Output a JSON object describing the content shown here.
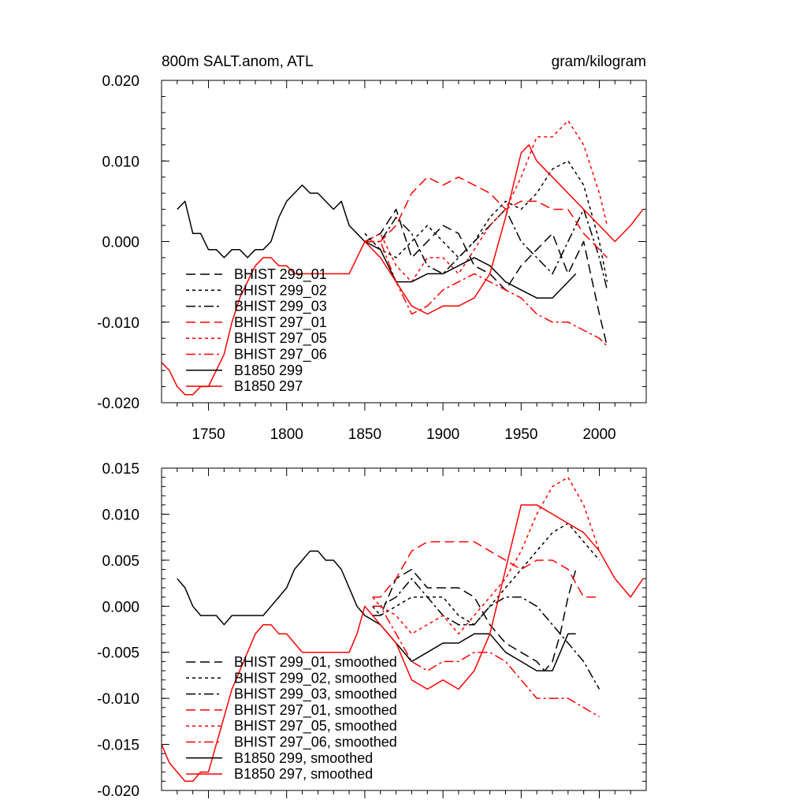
{
  "chart_data": [
    {
      "type": "line",
      "title": "800m SALT.anom, ATL",
      "units": "gram/kilogram",
      "xlim": [
        1720,
        2030
      ],
      "ylim": [
        -0.02,
        0.02
      ],
      "xticks": [
        1750,
        1800,
        1850,
        1900,
        1950,
        2000
      ],
      "xtick_labels": [
        "1750",
        "1800",
        "1850",
        "1900",
        "1950",
        "2000"
      ],
      "yticks": [
        -0.02,
        -0.01,
        0.0,
        0.01,
        0.02
      ],
      "ytick_labels": [
        "-0.020",
        "-0.010",
        "0.000",
        "0.010",
        "0.020"
      ],
      "legend_position": "bottom-left",
      "series": [
        {
          "name": "BHIST 299_01",
          "color": "#000000",
          "dash": "dash",
          "x": [
            1850,
            1860,
            1870,
            1880,
            1890,
            1900,
            1910,
            1920,
            1930,
            1940,
            1950,
            1960,
            1970,
            1980,
            1990,
            2000,
            2005
          ],
          "y": [
            0.0,
            0.001,
            0.004,
            -0.002,
            0.0,
            0.002,
            0.001,
            -0.003,
            -0.004,
            -0.006,
            -0.003,
            -0.001,
            0.001,
            -0.004,
            0.0,
            -0.009,
            -0.013
          ]
        },
        {
          "name": "BHIST 299_02",
          "color": "#000000",
          "dash": "dot",
          "x": [
            1850,
            1860,
            1870,
            1880,
            1890,
            1900,
            1910,
            1920,
            1930,
            1940,
            1950,
            1960,
            1970,
            1980,
            1990,
            2000,
            2005
          ],
          "y": [
            0.001,
            -0.001,
            -0.002,
            0.0,
            0.002,
            0.0,
            -0.002,
            0.0,
            0.003,
            0.005,
            0.004,
            0.006,
            0.009,
            0.01,
            0.007,
            0.0,
            -0.005
          ]
        },
        {
          "name": "BHIST 299_03",
          "color": "#000000",
          "dash": "dashdot",
          "x": [
            1850,
            1860,
            1870,
            1880,
            1890,
            1900,
            1910,
            1920,
            1930,
            1940,
            1950,
            1960,
            1970,
            1980,
            1990,
            2000,
            2005
          ],
          "y": [
            0.0,
            0.0,
            0.003,
            0.001,
            -0.003,
            -0.004,
            -0.002,
            0.0,
            0.002,
            0.004,
            0.0,
            -0.002,
            -0.004,
            0.0,
            0.004,
            -0.002,
            -0.006
          ]
        },
        {
          "name": "BHIST 297_01",
          "color": "#ff0000",
          "dash": "dash",
          "x": [
            1850,
            1860,
            1870,
            1880,
            1890,
            1900,
            1910,
            1920,
            1930,
            1940,
            1950,
            1960,
            1970,
            1980,
            1990,
            2000,
            2005
          ],
          "y": [
            0.0,
            0.0,
            0.002,
            0.006,
            0.008,
            0.007,
            0.008,
            0.007,
            0.006,
            0.004,
            0.005,
            0.005,
            0.004,
            0.004,
            0.001,
            -0.001,
            -0.002
          ]
        },
        {
          "name": "BHIST 297_05",
          "color": "#ff0000",
          "dash": "dot",
          "x": [
            1850,
            1860,
            1870,
            1880,
            1890,
            1900,
            1910,
            1920,
            1930,
            1940,
            1950,
            1960,
            1970,
            1980,
            1990,
            2000,
            2005
          ],
          "y": [
            0.0,
            0.001,
            -0.003,
            -0.005,
            -0.002,
            -0.002,
            -0.004,
            -0.001,
            0.002,
            0.004,
            0.008,
            0.013,
            0.013,
            0.015,
            0.012,
            0.006,
            0.002
          ]
        },
        {
          "name": "BHIST 297_06",
          "color": "#ff0000",
          "dash": "dashdot",
          "x": [
            1850,
            1860,
            1870,
            1880,
            1890,
            1900,
            1910,
            1920,
            1930,
            1940,
            1950,
            1960,
            1970,
            1980,
            1990,
            2000,
            2005
          ],
          "y": [
            0.0,
            0.0,
            -0.005,
            -0.009,
            -0.008,
            -0.006,
            -0.005,
            -0.004,
            -0.005,
            -0.006,
            -0.007,
            -0.009,
            -0.01,
            -0.01,
            -0.011,
            -0.012,
            -0.013
          ]
        },
        {
          "name": "B1850 299",
          "color": "#000000",
          "dash": "solid",
          "x": [
            1730,
            1735,
            1740,
            1745,
            1750,
            1755,
            1760,
            1765,
            1770,
            1775,
            1780,
            1785,
            1790,
            1795,
            1800,
            1805,
            1810,
            1815,
            1820,
            1825,
            1830,
            1835,
            1840,
            1845,
            1850,
            1860,
            1870,
            1880,
            1890,
            1900,
            1910,
            1920,
            1930,
            1940,
            1950,
            1960,
            1970,
            1980,
            1985
          ],
          "y": [
            0.004,
            0.005,
            0.001,
            0.001,
            -0.001,
            -0.001,
            -0.002,
            -0.001,
            -0.001,
            -0.002,
            -0.001,
            -0.001,
            0.0,
            0.003,
            0.005,
            0.006,
            0.007,
            0.006,
            0.006,
            0.005,
            0.004,
            0.005,
            0.002,
            0.001,
            0.0,
            -0.001,
            -0.005,
            -0.005,
            -0.004,
            -0.004,
            -0.003,
            -0.002,
            -0.003,
            -0.005,
            -0.006,
            -0.007,
            -0.007,
            -0.005,
            -0.004
          ]
        },
        {
          "name": "B1850 297",
          "color": "#ff0000",
          "dash": "solid",
          "x": [
            1720,
            1725,
            1730,
            1735,
            1740,
            1745,
            1750,
            1755,
            1760,
            1765,
            1770,
            1775,
            1780,
            1785,
            1790,
            1795,
            1800,
            1805,
            1810,
            1815,
            1820,
            1825,
            1830,
            1835,
            1840,
            1845,
            1850,
            1860,
            1870,
            1880,
            1890,
            1900,
            1910,
            1920,
            1930,
            1940,
            1950,
            1955,
            1960,
            1970,
            1980,
            1990,
            2000,
            2010,
            2020,
            2028
          ],
          "y": [
            -0.015,
            -0.016,
            -0.018,
            -0.019,
            -0.019,
            -0.018,
            -0.018,
            -0.016,
            -0.014,
            -0.01,
            -0.007,
            -0.005,
            -0.003,
            -0.002,
            -0.002,
            -0.003,
            -0.003,
            -0.004,
            -0.004,
            -0.004,
            -0.004,
            -0.004,
            -0.004,
            -0.004,
            -0.004,
            -0.002,
            0.0,
            -0.002,
            -0.005,
            -0.008,
            -0.009,
            -0.008,
            -0.008,
            -0.007,
            -0.004,
            0.003,
            0.011,
            0.012,
            0.01,
            0.008,
            0.006,
            0.004,
            0.002,
            0.0,
            0.002,
            0.004
          ]
        }
      ]
    },
    {
      "type": "line",
      "xlim": [
        1720,
        2030
      ],
      "ylim": [
        -0.02,
        0.015
      ],
      "xticks": [
        1750,
        1800,
        1850,
        1900,
        1950,
        2000
      ],
      "yticks": [
        -0.02,
        -0.015,
        -0.01,
        -0.005,
        0.0,
        0.005,
        0.01,
        0.015
      ],
      "ytick_labels": [
        "-0.020",
        "-0.015",
        "-0.010",
        "-0.005",
        "0.000",
        "0.005",
        "0.010",
        "0.015"
      ],
      "legend_position": "bottom-left",
      "series": [
        {
          "name": "BHIST 299_01, smoothed",
          "color": "#000000",
          "dash": "dash",
          "x": [
            1855,
            1860,
            1870,
            1880,
            1890,
            1900,
            1910,
            1920,
            1930,
            1940,
            1950,
            1960,
            1965,
            1970,
            1975,
            1980,
            1985
          ],
          "y": [
            -0.001,
            -0.001,
            0.003,
            0.004,
            0.002,
            0.002,
            0.002,
            0.001,
            -0.002,
            -0.004,
            -0.005,
            -0.006,
            -0.007,
            -0.006,
            -0.003,
            0.001,
            0.004
          ]
        },
        {
          "name": "BHIST 299_02, smoothed",
          "color": "#000000",
          "dash": "dot",
          "x": [
            1855,
            1860,
            1870,
            1880,
            1890,
            1900,
            1910,
            1920,
            1930,
            1940,
            1950,
            1960,
            1970,
            1980,
            1990,
            2000
          ],
          "y": [
            0.0,
            -0.001,
            0.0,
            0.001,
            0.001,
            0.001,
            -0.001,
            -0.002,
            0.0,
            0.002,
            0.004,
            0.006,
            0.008,
            0.009,
            0.007,
            0.005
          ]
        },
        {
          "name": "BHIST 299_03, smoothed",
          "color": "#000000",
          "dash": "dashdot",
          "x": [
            1855,
            1860,
            1870,
            1880,
            1890,
            1900,
            1910,
            1920,
            1930,
            1940,
            1950,
            1960,
            1970,
            1980,
            1990,
            2000
          ],
          "y": [
            0.0,
            0.0,
            0.001,
            0.003,
            0.001,
            -0.001,
            -0.002,
            -0.002,
            0.0,
            0.001,
            0.001,
            0.0,
            -0.002,
            -0.004,
            -0.006,
            -0.009
          ]
        },
        {
          "name": "BHIST 297_01, smoothed",
          "color": "#ff0000",
          "dash": "dash",
          "x": [
            1855,
            1860,
            1870,
            1880,
            1890,
            1900,
            1910,
            1920,
            1930,
            1940,
            1950,
            1960,
            1970,
            1980,
            1990,
            2000
          ],
          "y": [
            0.001,
            0.001,
            0.003,
            0.006,
            0.007,
            0.007,
            0.007,
            0.007,
            0.006,
            0.005,
            0.004,
            0.005,
            0.005,
            0.004,
            0.001,
            0.001
          ]
        },
        {
          "name": "BHIST 297_05, smoothed",
          "color": "#ff0000",
          "dash": "dot",
          "x": [
            1855,
            1860,
            1870,
            1880,
            1890,
            1900,
            1910,
            1920,
            1930,
            1940,
            1950,
            1960,
            1970,
            1980,
            1990,
            2000
          ],
          "y": [
            0.001,
            0.0,
            -0.001,
            -0.003,
            -0.002,
            -0.001,
            -0.003,
            -0.001,
            0.001,
            0.003,
            0.006,
            0.01,
            0.013,
            0.014,
            0.011,
            0.006
          ]
        },
        {
          "name": "BHIST 297_06, smoothed",
          "color": "#ff0000",
          "dash": "dashdot",
          "x": [
            1855,
            1860,
            1870,
            1880,
            1890,
            1900,
            1910,
            1920,
            1930,
            1940,
            1950,
            1960,
            1970,
            1980,
            1990,
            2000
          ],
          "y": [
            0.0,
            0.0,
            -0.003,
            -0.006,
            -0.007,
            -0.006,
            -0.006,
            -0.005,
            -0.005,
            -0.006,
            -0.008,
            -0.01,
            -0.01,
            -0.01,
            -0.011,
            -0.012
          ]
        },
        {
          "name": "B1850 299, smoothed",
          "color": "#000000",
          "dash": "solid",
          "x": [
            1730,
            1735,
            1740,
            1745,
            1750,
            1755,
            1760,
            1765,
            1770,
            1775,
            1780,
            1785,
            1790,
            1795,
            1800,
            1805,
            1810,
            1815,
            1820,
            1825,
            1830,
            1835,
            1840,
            1845,
            1850,
            1860,
            1870,
            1880,
            1890,
            1900,
            1910,
            1920,
            1930,
            1940,
            1950,
            1960,
            1970,
            1975,
            1980,
            1985
          ],
          "y": [
            0.003,
            0.002,
            0.0,
            -0.001,
            -0.001,
            -0.001,
            -0.002,
            -0.001,
            -0.001,
            -0.001,
            -0.001,
            -0.001,
            0.0,
            0.001,
            0.002,
            0.004,
            0.005,
            0.006,
            0.006,
            0.005,
            0.005,
            0.004,
            0.002,
            0.0,
            -0.001,
            -0.002,
            -0.004,
            -0.006,
            -0.005,
            -0.004,
            -0.004,
            -0.003,
            -0.003,
            -0.005,
            -0.006,
            -0.007,
            -0.007,
            -0.005,
            -0.003,
            -0.003
          ]
        },
        {
          "name": "B1850 297, smoothed",
          "color": "#ff0000",
          "dash": "solid",
          "x": [
            1720,
            1725,
            1730,
            1735,
            1740,
            1745,
            1750,
            1755,
            1760,
            1765,
            1770,
            1775,
            1780,
            1785,
            1790,
            1795,
            1800,
            1805,
            1810,
            1815,
            1820,
            1825,
            1830,
            1835,
            1840,
            1845,
            1850,
            1860,
            1870,
            1880,
            1890,
            1900,
            1910,
            1920,
            1930,
            1940,
            1950,
            1960,
            1970,
            1980,
            1990,
            2000,
            2010,
            2020,
            2028
          ],
          "y": [
            -0.015,
            -0.017,
            -0.018,
            -0.019,
            -0.019,
            -0.018,
            -0.018,
            -0.015,
            -0.012,
            -0.009,
            -0.007,
            -0.005,
            -0.003,
            -0.002,
            -0.002,
            -0.003,
            -0.003,
            -0.004,
            -0.005,
            -0.005,
            -0.005,
            -0.005,
            -0.005,
            -0.005,
            -0.005,
            -0.003,
            0.0,
            -0.002,
            -0.004,
            -0.008,
            -0.009,
            -0.008,
            -0.009,
            -0.007,
            -0.003,
            0.004,
            0.011,
            0.011,
            0.01,
            0.009,
            0.008,
            0.006,
            0.003,
            0.001,
            0.003
          ]
        }
      ]
    }
  ]
}
